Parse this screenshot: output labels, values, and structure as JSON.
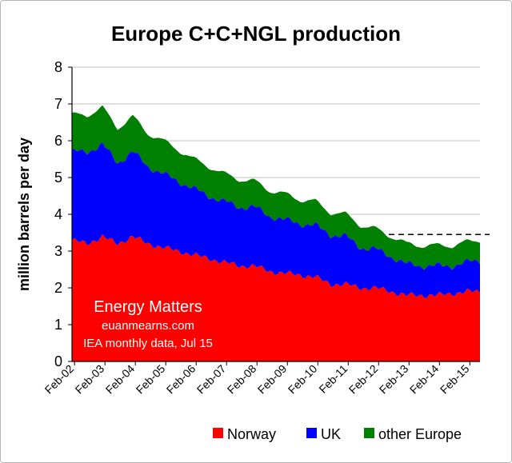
{
  "chart_data": {
    "type": "area",
    "stacked": true,
    "title": "Europe C+C+NGL production",
    "xlabel": "",
    "ylabel": "million barrels per day",
    "ylim": [
      0,
      8
    ],
    "yticks": [
      "0",
      "1",
      "2",
      "3",
      "4",
      "5",
      "6",
      "7",
      "8"
    ],
    "xlim": [
      "2002-01",
      "2015-06"
    ],
    "xticks": [
      "Feb-02",
      "Feb-03",
      "Feb-04",
      "Feb-05",
      "Feb-06",
      "Feb-07",
      "Feb-08",
      "Feb-09",
      "Feb-10",
      "Feb-11",
      "Feb-12",
      "Feb-13",
      "Feb-14",
      "Feb-15"
    ],
    "grid": "horizontal",
    "legend_position": "bottom",
    "series": [
      {
        "name": "Norway",
        "color": "#ff0000",
        "x": [
          "2002-01",
          "2002-07",
          "2003-01",
          "2003-07",
          "2004-01",
          "2004-07",
          "2005-01",
          "2005-07",
          "2006-01",
          "2006-07",
          "2007-01",
          "2007-07",
          "2008-01",
          "2008-07",
          "2009-01",
          "2009-07",
          "2010-01",
          "2010-07",
          "2011-01",
          "2011-07",
          "2012-01",
          "2012-07",
          "2013-01",
          "2013-07",
          "2014-01",
          "2014-07",
          "2015-01",
          "2015-06"
        ],
        "values": [
          3.3,
          3.2,
          3.4,
          3.2,
          3.4,
          3.2,
          3.1,
          3.0,
          2.9,
          2.8,
          2.7,
          2.6,
          2.6,
          2.45,
          2.4,
          2.35,
          2.3,
          2.1,
          2.1,
          2.0,
          2.0,
          1.9,
          1.8,
          1.8,
          1.8,
          1.85,
          1.9,
          1.9
        ]
      },
      {
        "name": "UK",
        "color": "#0000ff",
        "x": [
          "2002-01",
          "2002-07",
          "2003-01",
          "2003-07",
          "2004-01",
          "2004-07",
          "2005-01",
          "2005-07",
          "2006-01",
          "2006-07",
          "2007-01",
          "2007-07",
          "2008-01",
          "2008-07",
          "2009-01",
          "2009-07",
          "2010-01",
          "2010-07",
          "2011-01",
          "2011-07",
          "2012-01",
          "2012-07",
          "2013-01",
          "2013-07",
          "2014-01",
          "2014-07",
          "2015-01",
          "2015-06"
        ],
        "values": [
          2.4,
          2.5,
          2.5,
          2.2,
          2.3,
          2.1,
          2.0,
          1.9,
          1.8,
          1.7,
          1.65,
          1.6,
          1.6,
          1.5,
          1.45,
          1.4,
          1.4,
          1.35,
          1.3,
          1.1,
          1.05,
          0.95,
          0.85,
          0.8,
          0.8,
          0.75,
          0.8,
          0.85
        ]
      },
      {
        "name": "other Europe",
        "color": "#008000",
        "x": [
          "2002-01",
          "2002-07",
          "2003-01",
          "2003-07",
          "2004-01",
          "2004-07",
          "2005-01",
          "2005-07",
          "2006-01",
          "2006-07",
          "2007-01",
          "2007-07",
          "2008-01",
          "2008-07",
          "2009-01",
          "2009-07",
          "2010-01",
          "2010-07",
          "2011-01",
          "2011-07",
          "2012-01",
          "2012-07",
          "2013-01",
          "2013-07",
          "2014-01",
          "2014-07",
          "2015-01",
          "2015-06"
        ],
        "values": [
          1.0,
          1.0,
          1.0,
          0.95,
          0.95,
          0.9,
          0.9,
          0.85,
          0.8,
          0.8,
          0.75,
          0.75,
          0.7,
          0.7,
          0.7,
          0.65,
          0.65,
          0.6,
          0.6,
          0.6,
          0.55,
          0.55,
          0.55,
          0.55,
          0.55,
          0.55,
          0.55,
          0.55
        ]
      }
    ],
    "reference_line": {
      "y": 3.45,
      "x_start": "2012-06",
      "x_end": "2015-06",
      "style": "dashed"
    },
    "annotations": [
      "Energy Matters",
      "euanmearns.com",
      "IEA monthly data, Jul 15"
    ]
  }
}
